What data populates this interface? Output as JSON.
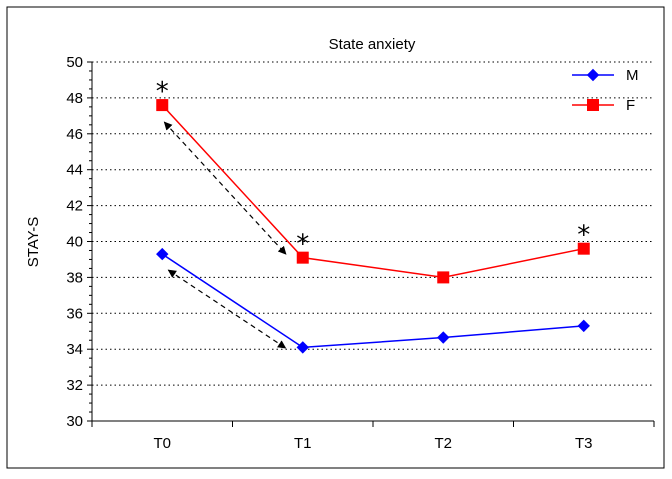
{
  "chart_data": {
    "type": "line",
    "title": "State anxiety",
    "xlabel": "",
    "ylabel": "STAY-S",
    "categories": [
      "T0",
      "T1",
      "T2",
      "T3"
    ],
    "ylim": [
      30,
      50
    ],
    "yticks": [
      30,
      32,
      34,
      36,
      38,
      40,
      42,
      44,
      46,
      48,
      50
    ],
    "grid": "horizontal-dotted",
    "legend_position": "top-right",
    "series": [
      {
        "name": "M",
        "values": [
          39.3,
          34.1,
          34.65,
          35.3
        ],
        "color": "#0000ff",
        "marker": "diamond"
      },
      {
        "name": "F",
        "values": [
          47.6,
          39.1,
          38.0,
          39.6
        ],
        "color": "#ff0000",
        "marker": "square"
      }
    ],
    "annotations": [
      {
        "text": "*",
        "series": "F",
        "category": "T0"
      },
      {
        "text": "*",
        "series": "F",
        "category": "T1"
      },
      {
        "text": "*",
        "series": "F",
        "category": "T3"
      }
    ],
    "arrows": [
      {
        "from": {
          "category": "T0",
          "series": "F"
        },
        "to": {
          "category": "T1",
          "series": "F"
        },
        "style": "dashed-double"
      },
      {
        "from": {
          "category": "T0",
          "series": "M"
        },
        "to": {
          "category": "T1",
          "series": "M"
        },
        "style": "dashed-double"
      }
    ]
  }
}
